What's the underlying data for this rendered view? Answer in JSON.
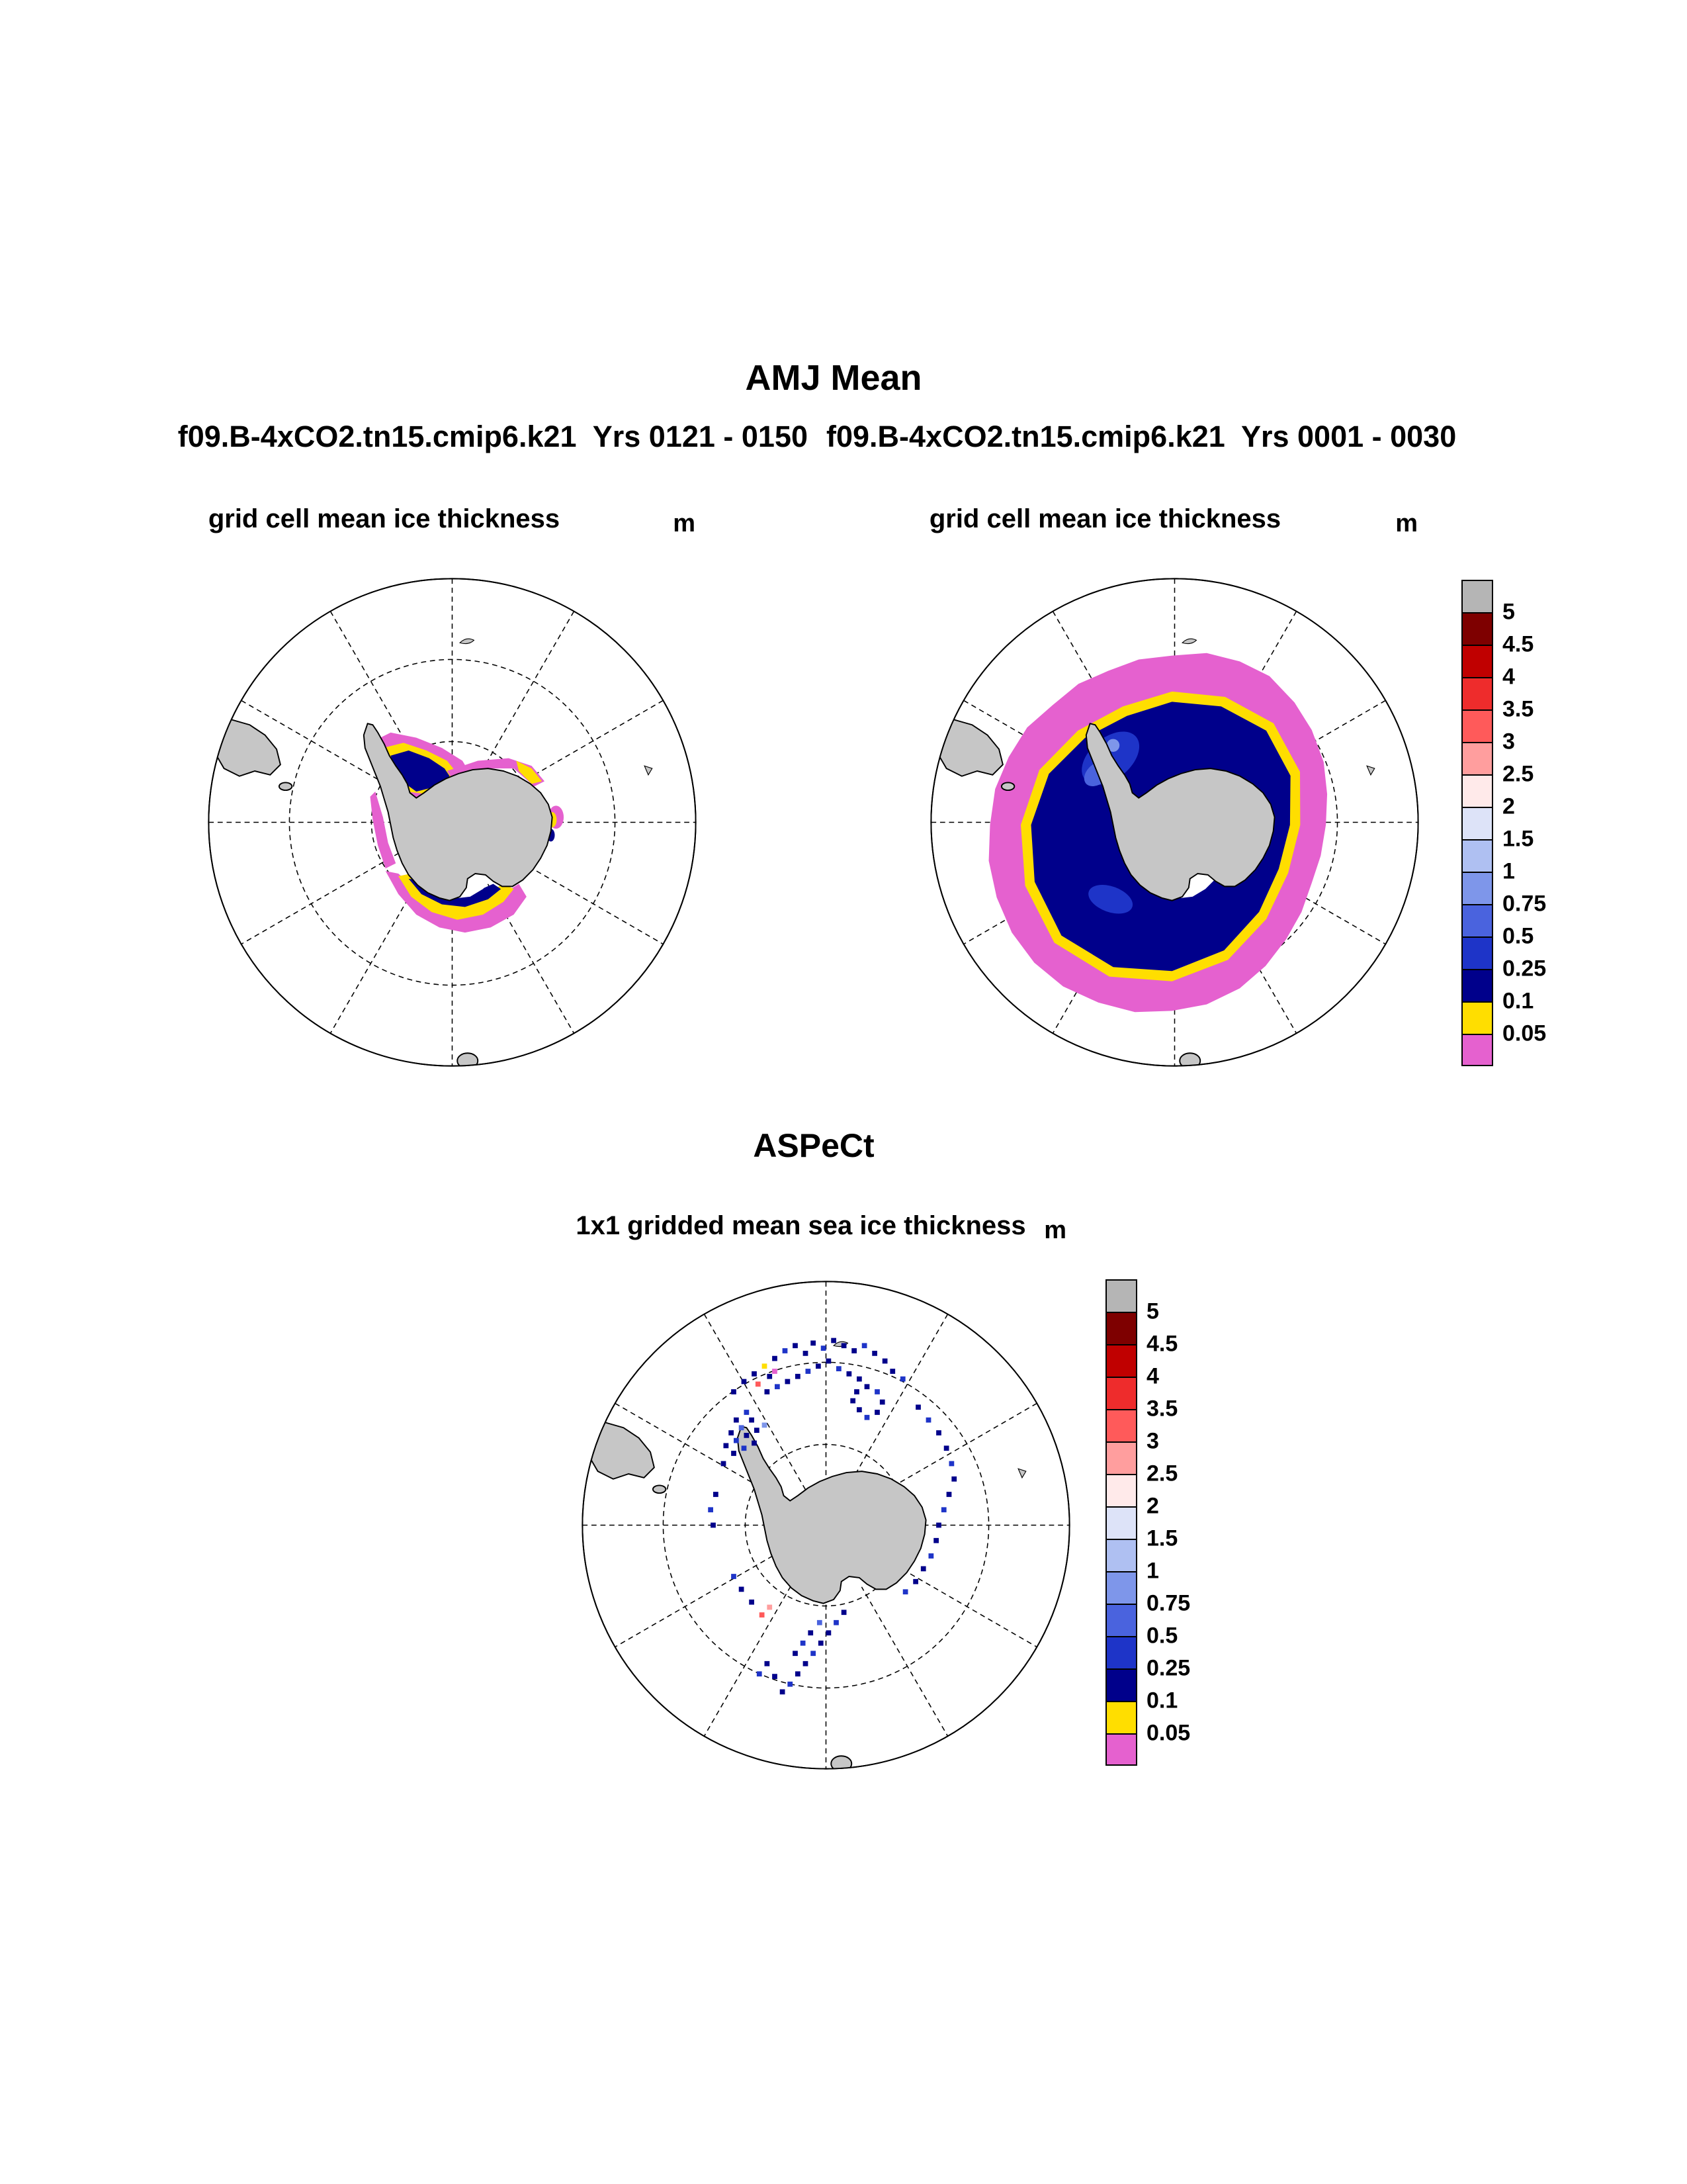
{
  "header": {
    "title": "AMJ Mean",
    "subtitle_left": "f09.B-4xCO2.tn15.cmip6.k21  Yrs 0121 - 0150",
    "subtitle_right": "f09.B-4xCO2.tn15.cmip6.k21  Yrs 0001 - 0030"
  },
  "section": {
    "title": "ASPeCt"
  },
  "panels": [
    {
      "title": "grid cell mean ice thickness",
      "unit": "m"
    },
    {
      "title": "grid cell mean ice thickness",
      "unit": "m"
    },
    {
      "title": "1x1 gridded mean sea ice thickness",
      "unit": "m"
    }
  ],
  "colorbar": {
    "unit": "m",
    "levels": [
      "5",
      "4.5",
      "4",
      "3.5",
      "3",
      "2.5",
      "2",
      "1.5",
      "1",
      "0.75",
      "0.5",
      "0.25",
      "0.1",
      "0.05"
    ],
    "colors": [
      "#B5B5B5",
      "#7E0000",
      "#C00000",
      "#EE2C2C",
      "#FF5A5A",
      "#FF9E9E",
      "#FFEAEA",
      "#DDE3F8",
      "#AFC0F2",
      "#7E96EA",
      "#4A63DE",
      "#1E34C8",
      "#00008B",
      "#FFDE00",
      "#E561CF"
    ]
  },
  "chart_data": {
    "type": "heatmap",
    "subtype": "south-polar-stereographic-map",
    "figure_title": "AMJ Mean",
    "variable": "sea ice thickness",
    "unit": "m",
    "levels_m": [
      0.05,
      0.1,
      0.25,
      0.5,
      0.75,
      1,
      1.5,
      2,
      2.5,
      3,
      3.5,
      4,
      4.5,
      5
    ],
    "palette_top_to_bottom": [
      "#B5B5B5",
      "#7E0000",
      "#C00000",
      "#EE2C2C",
      "#FF5A5A",
      "#FF9E9E",
      "#FFEAEA",
      "#DDE3F8",
      "#AFC0F2",
      "#7E96EA",
      "#4A63DE",
      "#1E34C8",
      "#00008B",
      "#FFDE00",
      "#E561CF"
    ],
    "legend_position": "right",
    "panels": [
      {
        "case": "f09.B-4xCO2.tn15.cmip6.k21",
        "years": "0121 - 0150",
        "title": "grid cell mean ice thickness",
        "summary": "Greatly reduced sea ice: thin 0.1-0.5 m (dark blue) patches confined to the Weddell and Ross Sea coasts, fringed by 0.05-0.1 m (yellow) and <0.05 m (magenta) ice."
      },
      {
        "case": "f09.B-4xCO2.tn15.cmip6.k21",
        "years": "0001 - 0030",
        "title": "grid cell mean ice thickness",
        "summary": "Extensive circumpolar pack mostly 0.1-0.75 m thick (dark blue) surrounding the continent, ringed by a yellow 0.05-0.1 m band and a broad magenta <0.05 m outer fringe."
      },
      {
        "source": "ASPeCt",
        "title": "1x1 gridded mean sea ice thickness",
        "summary": "Sparse ship-based 1x1-degree observations: scattered cells mostly 0.1-1 m (blues) along the coast, in the Weddell sector and the Ross Sea outflow; a few thicker (red/pink) and thinner (yellow/magenta) cells."
      }
    ],
    "aspect_points_svg": [
      [
        128,
        96,
        12
      ],
      [
        136,
        88,
        12
      ],
      [
        144,
        82,
        12
      ],
      [
        152,
        76,
        13
      ],
      [
        147,
        90,
        4
      ],
      [
        156,
        84,
        12
      ],
      [
        160,
        80,
        14
      ],
      [
        160,
        70,
        12
      ],
      [
        168,
        64,
        11
      ],
      [
        176,
        60,
        12
      ],
      [
        184,
        66,
        12
      ],
      [
        190,
        58,
        12
      ],
      [
        198,
        62,
        11
      ],
      [
        206,
        56,
        12
      ],
      [
        214,
        60,
        12
      ],
      [
        222,
        64,
        12
      ],
      [
        230,
        60,
        11
      ],
      [
        238,
        66,
        12
      ],
      [
        246,
        72,
        12
      ],
      [
        252,
        80,
        12
      ],
      [
        260,
        86,
        11
      ],
      [
        154,
        96,
        12
      ],
      [
        162,
        92,
        11
      ],
      [
        170,
        88,
        12
      ],
      [
        178,
        84,
        12
      ],
      [
        186,
        80,
        11
      ],
      [
        194,
        76,
        12
      ],
      [
        202,
        72,
        12
      ],
      [
        210,
        78,
        11
      ],
      [
        218,
        82,
        12
      ],
      [
        226,
        86,
        12
      ],
      [
        224,
        96,
        12
      ],
      [
        232,
        92,
        12
      ],
      [
        240,
        96,
        11
      ],
      [
        244,
        104,
        12
      ],
      [
        240,
        112,
        12
      ],
      [
        232,
        116,
        11
      ],
      [
        226,
        110,
        12
      ],
      [
        221,
        103,
        12
      ],
      [
        130,
        118,
        12
      ],
      [
        138,
        112,
        11
      ],
      [
        126,
        128,
        12
      ],
      [
        134,
        124,
        10
      ],
      [
        142,
        118,
        12
      ],
      [
        122,
        138,
        12
      ],
      [
        130,
        134,
        11
      ],
      [
        138,
        130,
        12
      ],
      [
        146,
        126,
        12
      ],
      [
        128,
        144,
        12
      ],
      [
        136,
        140,
        11
      ],
      [
        144,
        136,
        12
      ],
      [
        120,
        152,
        12
      ],
      [
        152,
        122,
        9
      ],
      [
        114,
        176,
        12
      ],
      [
        110,
        188,
        11
      ],
      [
        112,
        200,
        12
      ],
      [
        272,
        108,
        12
      ],
      [
        280,
        118,
        11
      ],
      [
        288,
        128,
        12
      ],
      [
        294,
        140,
        12
      ],
      [
        298,
        152,
        11
      ],
      [
        300,
        164,
        12
      ],
      [
        296,
        176,
        12
      ],
      [
        292,
        188,
        11
      ],
      [
        288,
        200,
        12
      ],
      [
        286,
        212,
        12
      ],
      [
        282,
        224,
        11
      ],
      [
        276,
        234,
        12
      ],
      [
        270,
        244,
        12
      ],
      [
        262,
        252,
        11
      ],
      [
        214,
        268,
        12
      ],
      [
        208,
        276,
        11
      ],
      [
        202,
        284,
        12
      ],
      [
        196,
        292,
        12
      ],
      [
        190,
        300,
        11
      ],
      [
        184,
        308,
        12
      ],
      [
        178,
        316,
        12
      ],
      [
        172,
        324,
        11
      ],
      [
        166,
        330,
        12
      ],
      [
        188,
        284,
        12
      ],
      [
        182,
        292,
        11
      ],
      [
        176,
        300,
        12
      ],
      [
        195,
        276,
        10
      ],
      [
        160,
        318,
        12
      ],
      [
        154,
        308,
        12
      ],
      [
        148,
        316,
        11
      ],
      [
        150,
        270,
        4
      ],
      [
        156,
        264,
        5
      ],
      [
        142,
        260,
        12
      ],
      [
        134,
        250,
        12
      ],
      [
        128,
        240,
        11
      ]
    ]
  }
}
